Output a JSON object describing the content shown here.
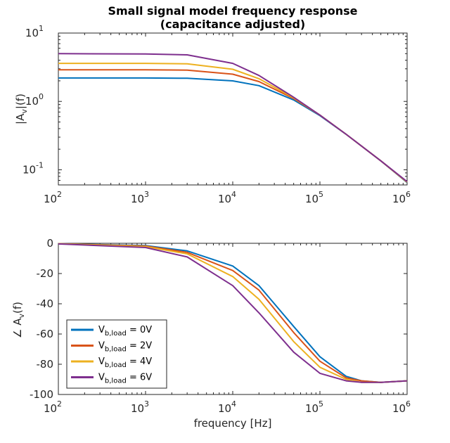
{
  "chart_data": [
    {
      "type": "line",
      "title": "Small signal model frequency response",
      "subtitle": "(capacitance adjusted)",
      "ylabel": {
        "main": "|A",
        "sub": "v",
        "suffix": "|(f)"
      },
      "xscale": "log",
      "yscale": "log",
      "xlim": [
        100,
        1000000
      ],
      "ylim": [
        0.06,
        10
      ],
      "xticks": [
        {
          "base": "10",
          "exp": "2"
        },
        {
          "base": "10",
          "exp": "3"
        },
        {
          "base": "10",
          "exp": "4"
        },
        {
          "base": "10",
          "exp": "5"
        },
        {
          "base": "10",
          "exp": "6"
        }
      ],
      "yticks": [
        {
          "value": 10,
          "base": "10",
          "exp": "1"
        },
        {
          "value": 1,
          "base": "10",
          "exp": "0"
        },
        {
          "value": 0.1,
          "base": "10",
          "exp": "-1"
        }
      ],
      "x": [
        100,
        1000,
        3000,
        10000,
        20000,
        50000,
        100000,
        200000,
        500000,
        1000000
      ],
      "series": [
        {
          "color": "#0072BD",
          "values": [
            2.2,
            2.2,
            2.18,
            2.0,
            1.7,
            1.05,
            0.62,
            0.33,
            0.135,
            0.065
          ]
        },
        {
          "color": "#D95319",
          "values": [
            2.9,
            2.9,
            2.87,
            2.5,
            1.95,
            1.1,
            0.63,
            0.33,
            0.135,
            0.066
          ]
        },
        {
          "color": "#EDB120",
          "values": [
            3.6,
            3.6,
            3.55,
            2.95,
            2.15,
            1.13,
            0.63,
            0.33,
            0.135,
            0.066
          ]
        },
        {
          "color": "#7E2F8E",
          "values": [
            5.0,
            4.95,
            4.8,
            3.6,
            2.4,
            1.15,
            0.63,
            0.33,
            0.135,
            0.067
          ]
        }
      ],
      "grid": false
    },
    {
      "type": "line",
      "xlabel": "frequency [Hz]",
      "ylabel": {
        "prefix": "∠ A",
        "sub": "v",
        "suffix": "(f)"
      },
      "xscale": "log",
      "xlim": [
        100,
        1000000
      ],
      "ylim": [
        -100,
        0
      ],
      "xticks": [
        {
          "base": "10",
          "exp": "2"
        },
        {
          "base": "10",
          "exp": "3"
        },
        {
          "base": "10",
          "exp": "4"
        },
        {
          "base": "10",
          "exp": "5"
        },
        {
          "base": "10",
          "exp": "6"
        }
      ],
      "yticks": [
        0,
        -20,
        -40,
        -60,
        -80,
        -100
      ],
      "x": [
        100,
        1000,
        3000,
        10000,
        20000,
        50000,
        100000,
        200000,
        300000,
        500000,
        1000000
      ],
      "series": [
        {
          "name": "V",
          "sub": "b,load",
          "eq": "= 0V",
          "color": "#0072BD",
          "values": [
            -0.3,
            -1.5,
            -5,
            -15,
            -28,
            -55,
            -75,
            -88,
            -91,
            -92,
            -91
          ]
        },
        {
          "name": "V",
          "sub": "b,load",
          "eq": "= 2V",
          "color": "#D95319",
          "values": [
            -0.3,
            -1.8,
            -6,
            -18,
            -31,
            -59,
            -78,
            -89,
            -91,
            -92,
            -91
          ]
        },
        {
          "name": "V",
          "sub": "b,load",
          "eq": "= 4V",
          "color": "#EDB120",
          "values": [
            -0.3,
            -2.2,
            -7,
            -22,
            -37,
            -65,
            -82,
            -90,
            -92,
            -92,
            -91
          ]
        },
        {
          "name": "V",
          "sub": "b,load",
          "eq": "= 6V",
          "color": "#7E2F8E",
          "values": [
            -0.4,
            -2.8,
            -9,
            -28,
            -46,
            -72,
            -86,
            -91,
            -92,
            -92,
            -91
          ]
        }
      ],
      "legend": "bottom-left",
      "grid": false
    }
  ]
}
